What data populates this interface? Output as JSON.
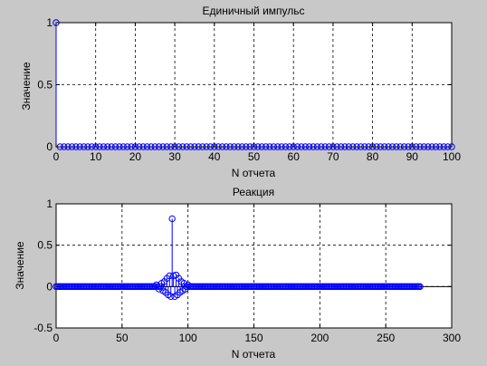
{
  "colors": {
    "figure_bg": "#c8c8c8",
    "axes_bg": "#ffffff",
    "stem": "#0000ff",
    "grid": "#000000"
  },
  "chart_data": [
    {
      "type": "stem",
      "title": "Единичный импульс",
      "xlabel": "N отчета",
      "ylabel": "Значение",
      "xlim": [
        0,
        100
      ],
      "ylim": [
        0,
        1
      ],
      "xticks": [
        0,
        10,
        20,
        30,
        40,
        50,
        60,
        70,
        80,
        90,
        100
      ],
      "yticks": [
        0,
        0.5,
        1
      ],
      "xtick_labels": [
        "0",
        "10",
        "20",
        "30",
        "40",
        "50",
        "60",
        "70",
        "80",
        "90",
        "100"
      ],
      "ytick_labels": [
        "0",
        "0.5",
        "1"
      ],
      "grid": true,
      "marker": "circle",
      "x_range": [
        0,
        100
      ],
      "nonzero": [
        {
          "x": 0,
          "y": 1
        }
      ]
    },
    {
      "type": "stem",
      "title": "Реакция",
      "xlabel": "N отчета",
      "ylabel": "Значение",
      "xlim": [
        0,
        300
      ],
      "ylim": [
        -0.5,
        1
      ],
      "xticks": [
        0,
        50,
        100,
        150,
        200,
        250,
        300
      ],
      "yticks": [
        -0.5,
        0,
        0.5,
        1
      ],
      "xtick_labels": [
        "0",
        "50",
        "100",
        "150",
        "200",
        "250",
        "300"
      ],
      "ytick_labels": [
        "-0.5",
        "0",
        "0.5",
        "1"
      ],
      "grid": true,
      "marker": "circle",
      "x_range": [
        0,
        276
      ],
      "nonzero": [
        {
          "x": 76,
          "y": 0.02
        },
        {
          "x": 78,
          "y": -0.03
        },
        {
          "x": 80,
          "y": 0.04
        },
        {
          "x": 81,
          "y": -0.05
        },
        {
          "x": 82,
          "y": 0.06
        },
        {
          "x": 83,
          "y": -0.07
        },
        {
          "x": 84,
          "y": 0.1
        },
        {
          "x": 85,
          "y": -0.1
        },
        {
          "x": 86,
          "y": 0.13
        },
        {
          "x": 87,
          "y": -0.12
        },
        {
          "x": 88,
          "y": 0.82
        },
        {
          "x": 89,
          "y": 0.13
        },
        {
          "x": 90,
          "y": -0.12
        },
        {
          "x": 91,
          "y": 0.14
        },
        {
          "x": 92,
          "y": -0.1
        },
        {
          "x": 93,
          "y": 0.1
        },
        {
          "x": 94,
          "y": -0.07
        },
        {
          "x": 95,
          "y": 0.06
        },
        {
          "x": 96,
          "y": -0.05
        },
        {
          "x": 97,
          "y": 0.04
        },
        {
          "x": 98,
          "y": -0.03
        },
        {
          "x": 100,
          "y": 0.02
        }
      ]
    }
  ]
}
